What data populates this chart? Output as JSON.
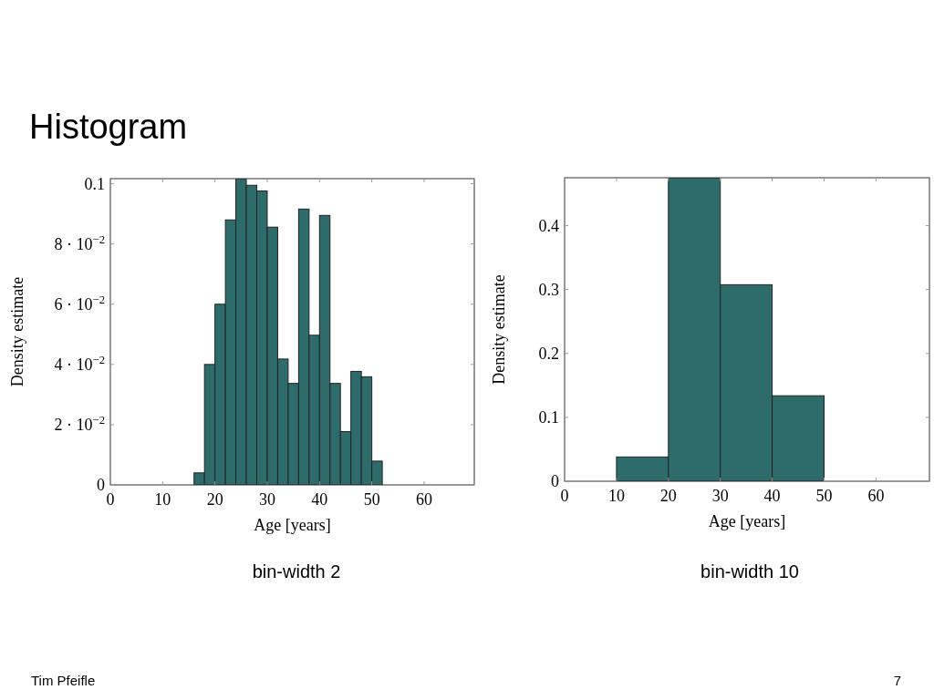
{
  "chart_data": [
    {
      "type": "histogram",
      "title": "Histogram",
      "xlabel": "Age [years]",
      "ylabel": "Density estimate",
      "color": "#2e6b6b",
      "bins": [
        16,
        18,
        20,
        22,
        24,
        26,
        28,
        30,
        32,
        34,
        36,
        38,
        40,
        42,
        44,
        46,
        48,
        50,
        52
      ],
      "values": [
        0.004,
        0.04,
        0.06,
        0.088,
        0.1017,
        0.0995,
        0.0976,
        0.0856,
        0.0418,
        0.0337,
        0.0916,
        0.0497,
        0.0895,
        0.0337,
        0.0177,
        0.0377,
        0.0359,
        0.0079
      ],
      "xlim": [
        0,
        69.6
      ],
      "xticks": [
        0,
        10,
        20,
        30,
        40,
        50,
        60
      ],
      "ylim": [
        0,
        0.1017
      ],
      "yticks": [
        0,
        {
          "value": 0.02,
          "label": "2 · 10$^{−2}$"
        },
        {
          "value": 0.04,
          "label": "4 · 10$^{−2}$"
        },
        {
          "value": 0.06,
          "label": "6 · 10$^{−2}$"
        },
        {
          "value": 0.08,
          "label": "8 · 10$^{−2}$"
        },
        0.1
      ],
      "grid": false,
      "annotations": [
        "bin-width 2",
        "Tim Pfeifle"
      ]
    },
    {
      "type": "histogram",
      "xlabel": "Age [years]",
      "ylabel": "Density estimate",
      "color": "#2e6b6b",
      "bins": [
        10,
        20,
        30,
        40,
        50
      ],
      "values": [
        0.038,
        0.475,
        0.3076,
        0.1338
      ],
      "xlim": [
        0,
        70.3
      ],
      "xticks": [
        0,
        10,
        20,
        30,
        40,
        50,
        60
      ],
      "ylim": [
        0,
        0.475
      ],
      "yticks": [
        0,
        0.1,
        0.2,
        0.3,
        0.4
      ],
      "grid": false,
      "annotations": [
        "bin-width 10",
        "7"
      ]
    }
  ]
}
